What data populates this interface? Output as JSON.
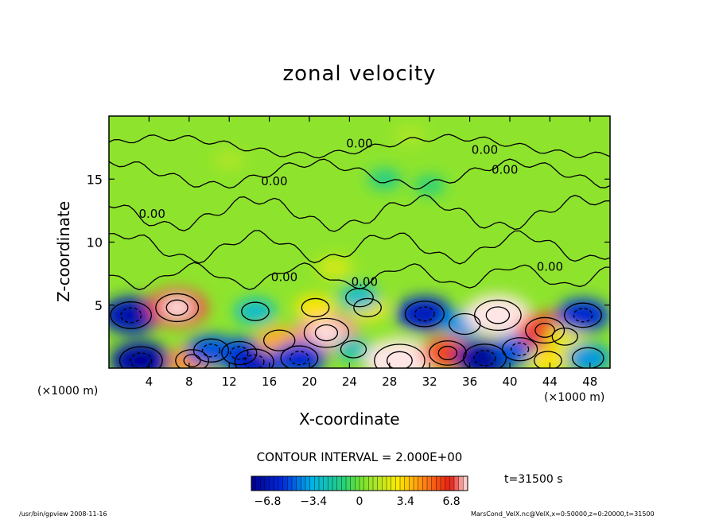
{
  "chart_data": {
    "type": "heatmap",
    "title": "zonal velocity",
    "xlabel": "X-coordinate",
    "ylabel": "Z-coordinate",
    "x_unit_left": "(×1000 m)",
    "x_unit_right": "(×1000 m)",
    "xlim": [
      0,
      50
    ],
    "ylim": [
      0,
      20
    ],
    "x_ticks": [
      4,
      8,
      12,
      16,
      20,
      24,
      28,
      32,
      36,
      40,
      44,
      48
    ],
    "y_ticks": [
      5,
      10,
      15
    ],
    "contour_interval_text": "CONTOUR INTERVAL = 2.000E+00",
    "contour_interval": 2.0,
    "contour_labels": [
      {
        "text": "0.00",
        "x": 25.0,
        "z": 17.8
      },
      {
        "text": "0.00",
        "x": 37.5,
        "z": 17.3
      },
      {
        "text": "0.00",
        "x": 39.5,
        "z": 15.7
      },
      {
        "text": "0.00",
        "x": 16.5,
        "z": 14.8
      },
      {
        "text": "0.00",
        "x": 4.3,
        "z": 12.2
      },
      {
        "text": "0.00",
        "x": 44.0,
        "z": 8.0
      },
      {
        "text": "0.00",
        "x": 17.5,
        "z": 7.2
      },
      {
        "text": "0.00",
        "x": 25.5,
        "z": 6.8
      }
    ],
    "colorbar": {
      "range": [
        -8,
        8
      ],
      "ticks": [
        -6.8,
        -3.4,
        0,
        3.4,
        6.8
      ],
      "tick_labels": [
        "−6.8",
        "−3.4",
        "0",
        "3.4",
        "6.8"
      ]
    },
    "anomalies": [
      {
        "x": 2.2,
        "z": 4.2,
        "value": -6.5
      },
      {
        "x": 3.2,
        "z": 0.6,
        "value": -7.0
      },
      {
        "x": 6.8,
        "z": 4.8,
        "value": 7.0
      },
      {
        "x": 8.3,
        "z": 0.6,
        "value": 4.5
      },
      {
        "x": 10.2,
        "z": 1.4,
        "value": -5.0
      },
      {
        "x": 13.0,
        "z": 1.2,
        "value": -5.0
      },
      {
        "x": 14.5,
        "z": 0.5,
        "value": -6.0
      },
      {
        "x": 14.6,
        "z": 4.5,
        "value": -3.0
      },
      {
        "x": 17.0,
        "z": 2.2,
        "value": 4.0
      },
      {
        "x": 21.7,
        "z": 2.8,
        "value": 7.5
      },
      {
        "x": 19.0,
        "z": 0.8,
        "value": -5.5
      },
      {
        "x": 20.6,
        "z": 4.8,
        "value": 3.0
      },
      {
        "x": 24.4,
        "z": 1.5,
        "value": -2.5
      },
      {
        "x": 25.8,
        "z": 4.8,
        "value": 3.0
      },
      {
        "x": 25.0,
        "z": 5.6,
        "value": -3.0
      },
      {
        "x": 29.0,
        "z": 0.6,
        "value": 9.0
      },
      {
        "x": 31.5,
        "z": 4.3,
        "value": -6.0
      },
      {
        "x": 33.8,
        "z": 1.2,
        "value": 5.5
      },
      {
        "x": 35.5,
        "z": 3.5,
        "value": -4.0
      },
      {
        "x": 38.8,
        "z": 4.2,
        "value": 8.0
      },
      {
        "x": 37.5,
        "z": 0.8,
        "value": -7.0
      },
      {
        "x": 41.0,
        "z": 1.5,
        "value": -5.0
      },
      {
        "x": 43.5,
        "z": 3.0,
        "value": 6.0
      },
      {
        "x": 45.5,
        "z": 2.5,
        "value": 2.5
      },
      {
        "x": 47.3,
        "z": 4.2,
        "value": -5.5
      },
      {
        "x": 47.8,
        "z": 0.8,
        "value": -4.0
      },
      {
        "x": 43.8,
        "z": 0.6,
        "value": 3.0
      },
      {
        "x": 22.5,
        "z": 8.0,
        "value": 2.0
      },
      {
        "x": 27.5,
        "z": 15.0,
        "value": -1.5
      },
      {
        "x": 32.0,
        "z": 14.5,
        "value": -1.2
      },
      {
        "x": 12.0,
        "z": 16.5,
        "value": 1.2
      },
      {
        "x": 30.0,
        "z": 18.5,
        "value": 1.2
      }
    ]
  },
  "time_label": "t=31500 s",
  "footer_left": "/usr/bin/gpview   2008-11-16",
  "footer_right": "MarsCond_VelX.nc@VelX,x=0:50000,z=0:20000,t=31500"
}
